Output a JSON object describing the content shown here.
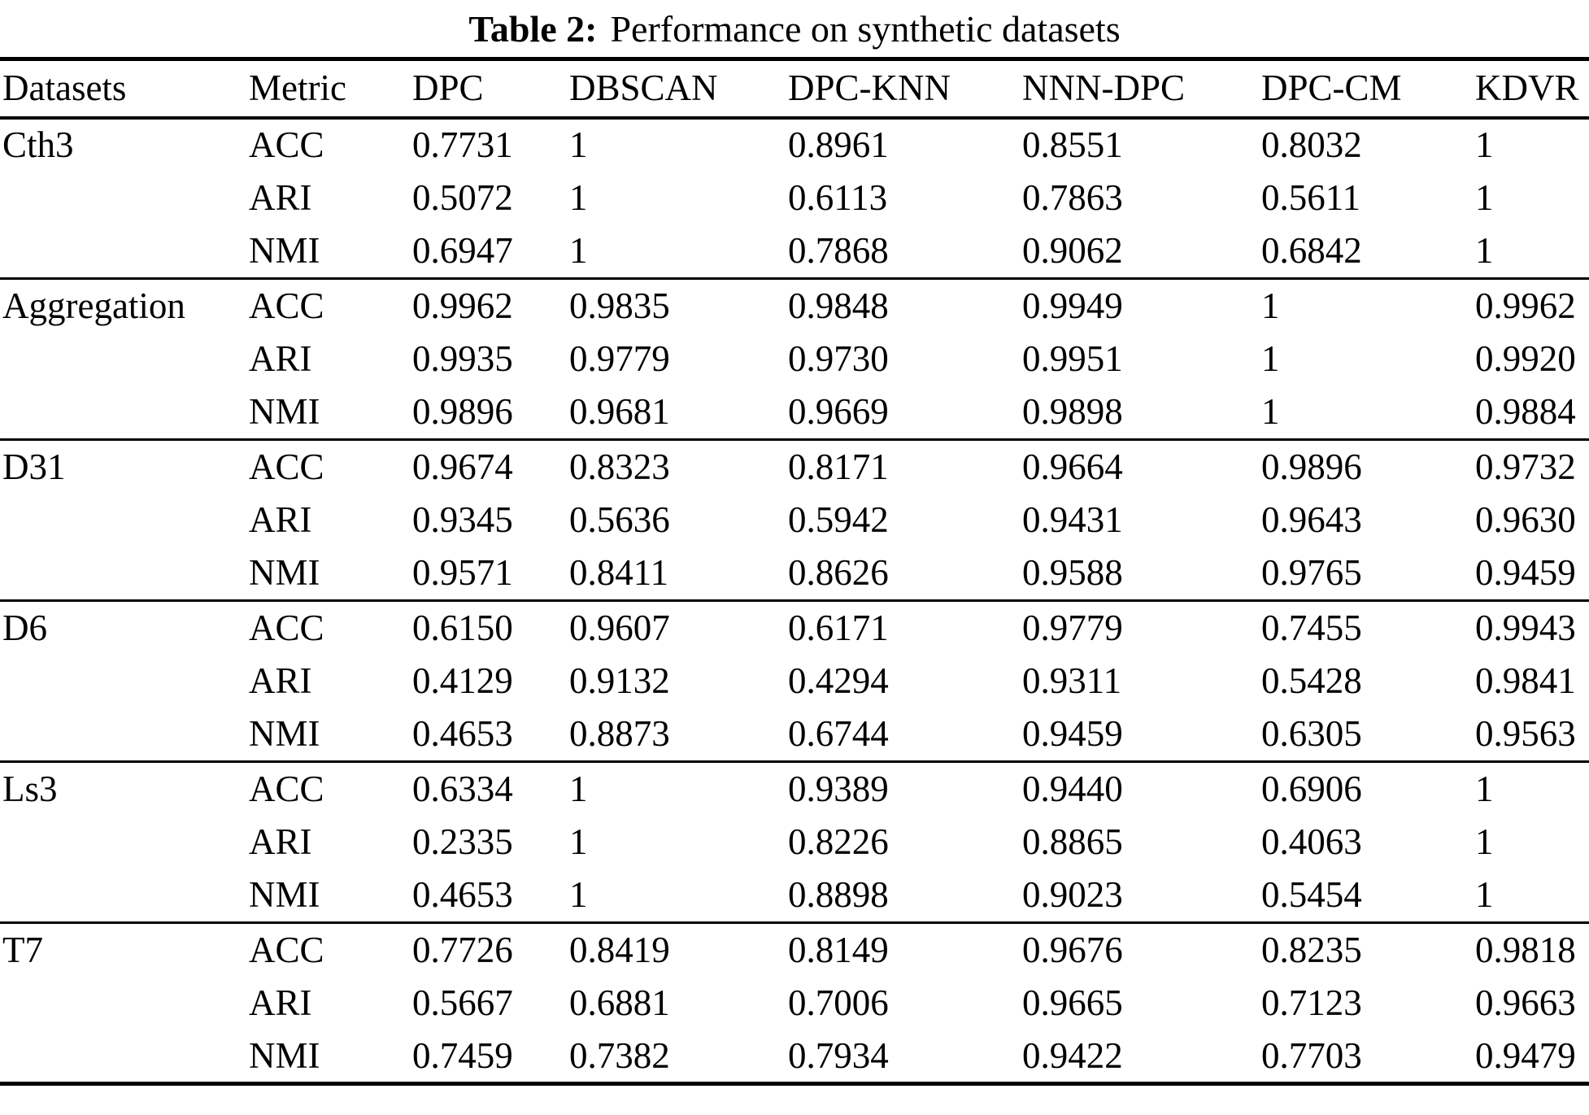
{
  "title": {
    "label": "Table 2:",
    "text": "Performance on synthetic datasets"
  },
  "table": {
    "columns": [
      "Datasets",
      "Metric",
      "DPC",
      "DBSCAN",
      "DPC-KNN",
      "NNN-DPC",
      "DPC-CM",
      "KDVR"
    ],
    "groups": [
      {
        "dataset": "Cth3",
        "rows": [
          {
            "metric": "ACC",
            "cells": [
              {
                "v": "0.7731"
              },
              {
                "v": "1",
                "b": true
              },
              {
                "v": "0.8961"
              },
              {
                "v": "0.8551"
              },
              {
                "v": "0.8032"
              },
              {
                "v": "1",
                "b": true
              }
            ]
          },
          {
            "metric": "ARI",
            "cells": [
              {
                "v": "0.5072"
              },
              {
                "v": "1",
                "b": true
              },
              {
                "v": "0.6113"
              },
              {
                "v": "0.7863"
              },
              {
                "v": "0.5611"
              },
              {
                "v": "1",
                "b": true
              }
            ]
          },
          {
            "metric": "NMI",
            "cells": [
              {
                "v": "0.6947"
              },
              {
                "v": "1",
                "b": true
              },
              {
                "v": "0.7868"
              },
              {
                "v": "0.9062"
              },
              {
                "v": "0.6842"
              },
              {
                "v": "1",
                "b": true
              }
            ]
          }
        ]
      },
      {
        "dataset": "Aggregation",
        "rows": [
          {
            "metric": "ACC",
            "cells": [
              {
                "v": "0.9962"
              },
              {
                "v": "0.9835"
              },
              {
                "v": "0.9848"
              },
              {
                "v": "0.9949"
              },
              {
                "v": "1",
                "b": true
              },
              {
                "v": "0.9962"
              }
            ]
          },
          {
            "metric": "ARI",
            "cells": [
              {
                "v": "0.9935"
              },
              {
                "v": "0.9779"
              },
              {
                "v": "0.9730"
              },
              {
                "v": "0.9951"
              },
              {
                "v": "1",
                "b": true
              },
              {
                "v": "0.9920"
              }
            ]
          },
          {
            "metric": "NMI",
            "cells": [
              {
                "v": "0.9896"
              },
              {
                "v": "0.9681"
              },
              {
                "v": "0.9669"
              },
              {
                "v": "0.9898"
              },
              {
                "v": "1",
                "b": true
              },
              {
                "v": "0.9884"
              }
            ]
          }
        ]
      },
      {
        "dataset": "D31",
        "rows": [
          {
            "metric": "ACC",
            "cells": [
              {
                "v": "0.9674"
              },
              {
                "v": "0.8323"
              },
              {
                "v": "0.8171"
              },
              {
                "v": "0.9664"
              },
              {
                "v": "0.9896",
                "b": true
              },
              {
                "v": "0.9732"
              }
            ]
          },
          {
            "metric": "ARI",
            "cells": [
              {
                "v": "0.9345"
              },
              {
                "v": "0.5636"
              },
              {
                "v": "0.5942"
              },
              {
                "v": "0.9431"
              },
              {
                "v": "0.9643",
                "b": true
              },
              {
                "v": "0.9630"
              }
            ]
          },
          {
            "metric": "NMI",
            "cells": [
              {
                "v": "0.9571"
              },
              {
                "v": "0.8411"
              },
              {
                "v": "0.8626"
              },
              {
                "v": "0.9588"
              },
              {
                "v": "0.9765",
                "b": true
              },
              {
                "v": "0.9459"
              }
            ]
          }
        ]
      },
      {
        "dataset": "D6",
        "rows": [
          {
            "metric": "ACC",
            "cells": [
              {
                "v": "0.6150"
              },
              {
                "v": "0.9607"
              },
              {
                "v": "0.6171"
              },
              {
                "v": "0.9779"
              },
              {
                "v": "0.7455"
              },
              {
                "v": "0.9943",
                "b": true
              }
            ]
          },
          {
            "metric": "ARI",
            "cells": [
              {
                "v": "0.4129"
              },
              {
                "v": "0.9132"
              },
              {
                "v": "0.4294"
              },
              {
                "v": "0.9311"
              },
              {
                "v": "0.5428"
              },
              {
                "v": "0.9841",
                "b": true
              }
            ]
          },
          {
            "metric": "NMI",
            "cells": [
              {
                "v": "0.4653"
              },
              {
                "v": "0.8873"
              },
              {
                "v": "0.6744"
              },
              {
                "v": "0.9459"
              },
              {
                "v": "0.6305"
              },
              {
                "v": "0.9563",
                "b": true
              }
            ]
          }
        ]
      },
      {
        "dataset": "Ls3",
        "rows": [
          {
            "metric": "ACC",
            "cells": [
              {
                "v": "0.6334"
              },
              {
                "v": "1",
                "b": true
              },
              {
                "v": "0.9389"
              },
              {
                "v": "0.9440"
              },
              {
                "v": "0.6906"
              },
              {
                "v": "1",
                "b": true
              }
            ]
          },
          {
            "metric": "ARI",
            "cells": [
              {
                "v": "0.2335"
              },
              {
                "v": "1",
                "b": true
              },
              {
                "v": "0.8226"
              },
              {
                "v": "0.8865"
              },
              {
                "v": "0.4063"
              },
              {
                "v": "1",
                "b": true
              }
            ]
          },
          {
            "metric": "NMI",
            "cells": [
              {
                "v": "0.4653"
              },
              {
                "v": "1",
                "b": true
              },
              {
                "v": "0.8898"
              },
              {
                "v": "0.9023"
              },
              {
                "v": "0.5454"
              },
              {
                "v": "1",
                "b": true
              }
            ]
          }
        ]
      },
      {
        "dataset": "T7",
        "rows": [
          {
            "metric": "ACC",
            "cells": [
              {
                "v": "0.7726"
              },
              {
                "v": "0.8419"
              },
              {
                "v": "0.8149"
              },
              {
                "v": "0.9676"
              },
              {
                "v": "0.8235"
              },
              {
                "v": "0.9818",
                "b": true
              }
            ]
          },
          {
            "metric": "ARI",
            "cells": [
              {
                "v": "0.5667"
              },
              {
                "v": "0.6881"
              },
              {
                "v": "0.7006"
              },
              {
                "v": "0.9665",
                "b": true
              },
              {
                "v": "0.7123"
              },
              {
                "v": "0.9663"
              }
            ]
          },
          {
            "metric": "NMI",
            "cells": [
              {
                "v": "0.7459"
              },
              {
                "v": "0.7382"
              },
              {
                "v": "0.7934"
              },
              {
                "v": "0.9422"
              },
              {
                "v": "0.7703"
              },
              {
                "v": "0.9479",
                "b": true
              }
            ]
          }
        ]
      }
    ]
  }
}
